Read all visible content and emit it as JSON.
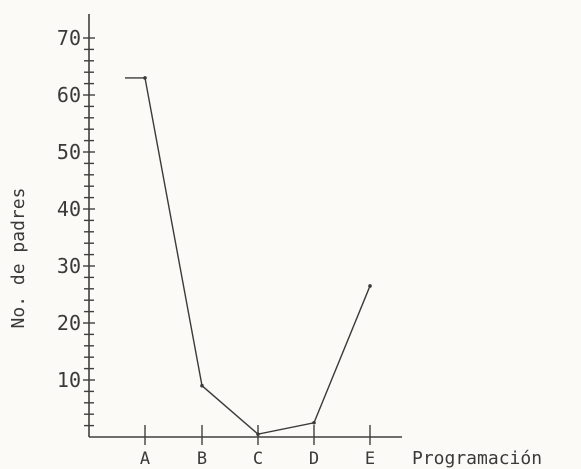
{
  "chart_data": {
    "type": "line",
    "title": "",
    "xlabel": "Programación",
    "ylabel": "No. de padres",
    "categories": [
      "A",
      "B",
      "C",
      "D",
      "E"
    ],
    "series": [
      {
        "values": [
          63,
          9,
          0.5,
          2.5,
          26.5
        ]
      }
    ],
    "ylim": [
      0,
      70
    ],
    "yticks": [
      10,
      20,
      30,
      40,
      50,
      60,
      70
    ],
    "ytick_labels": [
      "10",
      "20",
      "30",
      "40",
      "50",
      "60",
      "70"
    ],
    "grid": false,
    "legend": "none",
    "colors": {
      "line": "#3a3a3a",
      "axis": "#3f3f3f",
      "text": "#3a3a3a",
      "background": "#fbfaf6"
    }
  }
}
